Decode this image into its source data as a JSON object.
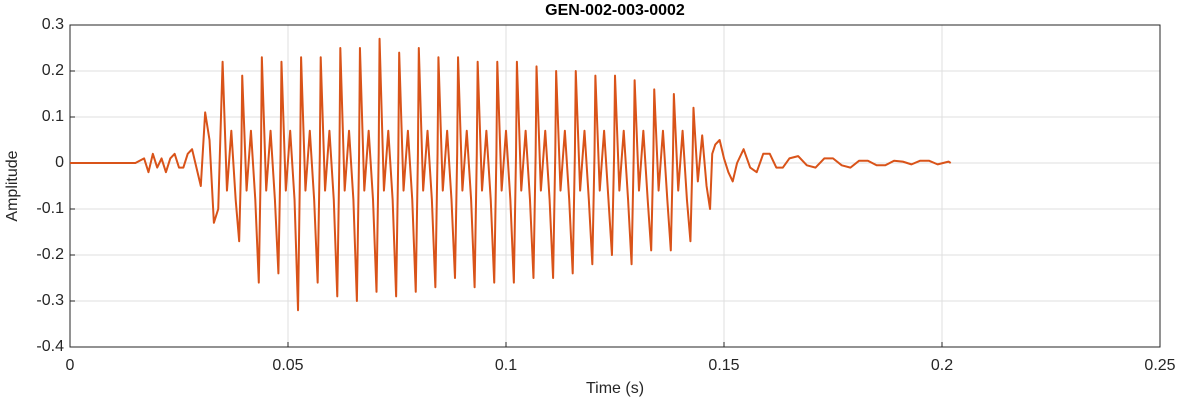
{
  "chart_data": {
    "type": "line",
    "title": "GEN-002-003-0002",
    "x_label": "Time (s)",
    "y_label": "Amplitude",
    "xlim": [
      0,
      0.25
    ],
    "ylim": [
      -0.4,
      0.3
    ],
    "xticks": [
      0,
      0.05,
      0.1,
      0.15,
      0.2,
      0.25
    ],
    "yticks": [
      -0.4,
      -0.3,
      -0.2,
      -0.1,
      0,
      0.1,
      0.2,
      0.3
    ],
    "grid": true,
    "series": [
      {
        "color": "#d95319",
        "x": [
          0,
          0.005,
          0.01,
          0.015,
          0.017,
          0.018,
          0.019,
          0.02,
          0.021,
          0.022,
          0.023,
          0.024,
          0.025,
          0.026,
          0.027,
          0.028,
          0.029,
          0.03,
          0.031,
          0.032,
          0.033,
          0.034,
          0.035,
          0.036,
          0.037,
          0.038,
          0.0388,
          0.0393,
          0.0395,
          0.0405,
          0.0415,
          0.0425,
          0.0433,
          0.0438,
          0.044,
          0.045,
          0.046,
          0.047,
          0.0478,
          0.0483,
          0.0485,
          0.0495,
          0.0505,
          0.0515,
          0.0523,
          0.0528,
          0.053,
          0.054,
          0.055,
          0.056,
          0.0568,
          0.0573,
          0.0575,
          0.0585,
          0.0595,
          0.0605,
          0.0613,
          0.0618,
          0.062,
          0.063,
          0.064,
          0.065,
          0.0658,
          0.0663,
          0.0665,
          0.0675,
          0.0685,
          0.0695,
          0.0703,
          0.0708,
          0.071,
          0.072,
          0.073,
          0.074,
          0.0748,
          0.0753,
          0.0755,
          0.0765,
          0.0775,
          0.0785,
          0.0793,
          0.0798,
          0.08,
          0.081,
          0.082,
          0.083,
          0.0838,
          0.0843,
          0.0845,
          0.0855,
          0.0865,
          0.0875,
          0.0883,
          0.0888,
          0.089,
          0.09,
          0.091,
          0.092,
          0.0928,
          0.0933,
          0.0935,
          0.0945,
          0.0955,
          0.0965,
          0.0973,
          0.0978,
          0.098,
          0.099,
          0.1,
          0.101,
          0.1018,
          0.1023,
          0.1025,
          0.1035,
          0.1045,
          0.1055,
          0.1063,
          0.1068,
          0.107,
          0.108,
          0.109,
          0.11,
          0.1108,
          0.1113,
          0.1115,
          0.1125,
          0.1135,
          0.1145,
          0.1153,
          0.1158,
          0.116,
          0.117,
          0.118,
          0.119,
          0.1198,
          0.1203,
          0.1205,
          0.1215,
          0.1225,
          0.1235,
          0.1243,
          0.1248,
          0.125,
          0.126,
          0.127,
          0.128,
          0.1288,
          0.1293,
          0.1295,
          0.1305,
          0.1315,
          0.1325,
          0.1333,
          0.1338,
          0.134,
          0.135,
          0.136,
          0.137,
          0.1378,
          0.1383,
          0.1385,
          0.1395,
          0.1405,
          0.1415,
          0.1423,
          0.1428,
          0.143,
          0.144,
          0.145,
          0.146,
          0.1468,
          0.1473,
          0.148,
          0.149,
          0.15,
          0.151,
          0.152,
          0.153,
          0.1545,
          0.156,
          0.1575,
          0.159,
          0.1605,
          0.162,
          0.1635,
          0.165,
          0.167,
          0.169,
          0.171,
          0.173,
          0.175,
          0.177,
          0.179,
          0.181,
          0.183,
          0.185,
          0.187,
          0.189,
          0.191,
          0.193,
          0.195,
          0.197,
          0.199,
          0.2015,
          0.202
        ],
        "values": [
          0,
          0,
          0,
          0,
          0.01,
          -0.02,
          0.02,
          -0.01,
          0.01,
          -0.02,
          0.01,
          0.02,
          -0.01,
          -0.01,
          0.02,
          0.03,
          -0.01,
          -0.05,
          0.11,
          0.05,
          -0.13,
          -0.1,
          0.22,
          -0.06,
          0.07,
          -0.08,
          -0.17,
          0.02,
          0.19,
          -0.06,
          0.07,
          -0.08,
          -0.26,
          0.02,
          0.23,
          -0.06,
          0.07,
          -0.08,
          -0.24,
          0.02,
          0.22,
          -0.06,
          0.07,
          -0.08,
          -0.32,
          0.02,
          0.23,
          -0.06,
          0.07,
          -0.08,
          -0.26,
          0.02,
          0.23,
          -0.06,
          0.07,
          -0.08,
          -0.29,
          0.02,
          0.25,
          -0.06,
          0.07,
          -0.08,
          -0.3,
          0.02,
          0.25,
          -0.06,
          0.07,
          -0.08,
          -0.28,
          0.02,
          0.27,
          -0.06,
          0.07,
          -0.08,
          -0.29,
          0.02,
          0.24,
          -0.06,
          0.07,
          -0.08,
          -0.28,
          0.02,
          0.25,
          -0.06,
          0.07,
          -0.08,
          -0.27,
          0.02,
          0.23,
          -0.06,
          0.07,
          -0.08,
          -0.25,
          0.02,
          0.23,
          -0.06,
          0.07,
          -0.08,
          -0.27,
          0.02,
          0.22,
          -0.06,
          0.07,
          -0.08,
          -0.26,
          0.02,
          0.22,
          -0.06,
          0.07,
          -0.08,
          -0.26,
          0.02,
          0.22,
          -0.06,
          0.07,
          -0.08,
          -0.25,
          0.02,
          0.21,
          -0.06,
          0.07,
          -0.08,
          -0.25,
          0.02,
          0.2,
          -0.06,
          0.07,
          -0.08,
          -0.24,
          0.02,
          0.2,
          -0.06,
          0.07,
          -0.08,
          -0.22,
          0.02,
          0.19,
          -0.06,
          0.07,
          -0.08,
          -0.2,
          0.02,
          0.19,
          -0.06,
          0.07,
          -0.08,
          -0.22,
          0.02,
          0.18,
          -0.06,
          0.07,
          -0.08,
          -0.19,
          0.02,
          0.16,
          -0.06,
          0.07,
          -0.08,
          -0.19,
          0.02,
          0.15,
          -0.06,
          0.07,
          -0.08,
          -0.17,
          0.02,
          0.12,
          -0.04,
          0.06,
          -0.05,
          -0.1,
          0.02,
          0.04,
          0.05,
          0.01,
          -0.02,
          -0.04,
          0,
          0.03,
          -0.01,
          -0.02,
          0.02,
          0.02,
          -0.01,
          -0.01,
          0.01,
          0.015,
          -0.005,
          -0.01,
          0.01,
          0.01,
          -0.005,
          -0.01,
          0.005,
          0.005,
          -0.005,
          -0.005,
          0.005,
          0.003,
          -0.003,
          0.005,
          0.005,
          -0.003,
          0.003,
          0
        ]
      }
    ]
  }
}
